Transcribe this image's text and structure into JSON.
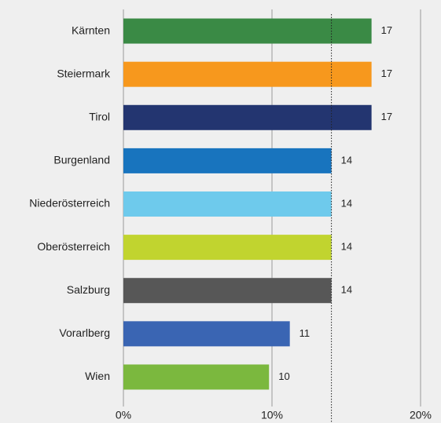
{
  "chart_data": {
    "type": "barh",
    "categories": [
      "Kärnten",
      "Steiermark",
      "Tirol",
      "Burgenland",
      "Niederösterreich",
      "Oberösterreich",
      "Salzburg",
      "Vorarlberg",
      "Wien"
    ],
    "values": [
      16.7,
      16.7,
      16.7,
      14,
      14,
      14,
      14,
      11.2,
      9.8
    ],
    "value_labels": [
      "17",
      "17",
      "17",
      "14",
      "14",
      "14",
      "14",
      "11",
      "10"
    ],
    "colors": [
      "#3a8a45",
      "#f7981d",
      "#233570",
      "#1874be",
      "#6ecaec",
      "#c1d42f",
      "#575757",
      "#3a65b3",
      "#7bb83e"
    ],
    "xlim": [
      0,
      20
    ],
    "xticks": [
      {
        "value": 0,
        "label": "0%"
      },
      {
        "value": 10,
        "label": "10%"
      },
      {
        "value": 20,
        "label": "20%"
      }
    ],
    "grid": true,
    "reference_line": 14
  }
}
